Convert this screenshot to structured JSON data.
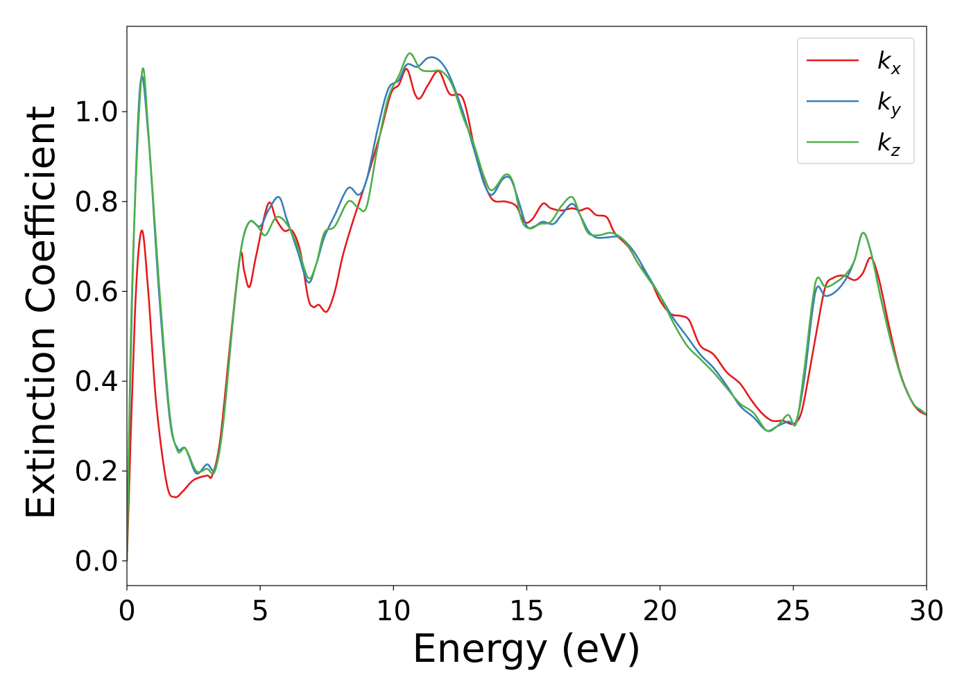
{
  "chart_data": {
    "type": "line",
    "xlabel": "Energy (eV)",
    "ylabel": "Extinction Coefficient",
    "xlim": [
      0,
      30
    ],
    "ylim": [
      -0.055,
      1.19
    ],
    "xticks": [
      0,
      5,
      10,
      15,
      20,
      25,
      30
    ],
    "xtick_labels": [
      "0",
      "5",
      "10",
      "15",
      "20",
      "25",
      "30"
    ],
    "yticks": [
      0.0,
      0.2,
      0.4,
      0.6,
      0.8,
      1.0
    ],
    "ytick_labels": [
      "0.0",
      "0.2",
      "0.4",
      "0.6",
      "0.8",
      "1.0"
    ],
    "grid": false,
    "legend_position": "top-right",
    "series": [
      {
        "name": "k_x",
        "label_main": "k",
        "label_sub": "x",
        "color": "#e41a1c",
        "points": [
          [
            0,
            0.0
          ],
          [
            0.3,
            0.55
          ],
          [
            0.55,
            0.735
          ],
          [
            0.8,
            0.6
          ],
          [
            1.1,
            0.35
          ],
          [
            1.5,
            0.17
          ],
          [
            1.8,
            0.142
          ],
          [
            2.1,
            0.155
          ],
          [
            2.5,
            0.18
          ],
          [
            3.0,
            0.19
          ],
          [
            3.2,
            0.19
          ],
          [
            3.5,
            0.27
          ],
          [
            3.9,
            0.5
          ],
          [
            4.25,
            0.68
          ],
          [
            4.4,
            0.645
          ],
          [
            4.6,
            0.61
          ],
          [
            4.85,
            0.68
          ],
          [
            5.3,
            0.795
          ],
          [
            5.6,
            0.76
          ],
          [
            5.9,
            0.735
          ],
          [
            6.2,
            0.735
          ],
          [
            6.5,
            0.69
          ],
          [
            6.8,
            0.585
          ],
          [
            7.0,
            0.565
          ],
          [
            7.2,
            0.57
          ],
          [
            7.5,
            0.555
          ],
          [
            7.8,
            0.6
          ],
          [
            8.1,
            0.68
          ],
          [
            8.5,
            0.76
          ],
          [
            9.0,
            0.85
          ],
          [
            9.5,
            0.95
          ],
          [
            9.9,
            1.04
          ],
          [
            10.2,
            1.06
          ],
          [
            10.5,
            1.095
          ],
          [
            10.8,
            1.04
          ],
          [
            11.0,
            1.03
          ],
          [
            11.3,
            1.06
          ],
          [
            11.7,
            1.09
          ],
          [
            12.1,
            1.04
          ],
          [
            12.6,
            1.03
          ],
          [
            13.0,
            0.93
          ],
          [
            13.3,
            0.86
          ],
          [
            13.7,
            0.805
          ],
          [
            14.2,
            0.8
          ],
          [
            14.6,
            0.79
          ],
          [
            14.9,
            0.755
          ],
          [
            15.2,
            0.76
          ],
          [
            15.6,
            0.795
          ],
          [
            15.9,
            0.785
          ],
          [
            16.3,
            0.78
          ],
          [
            16.7,
            0.785
          ],
          [
            17.0,
            0.78
          ],
          [
            17.3,
            0.785
          ],
          [
            17.6,
            0.77
          ],
          [
            18.0,
            0.765
          ],
          [
            18.3,
            0.73
          ],
          [
            18.8,
            0.7
          ],
          [
            19.2,
            0.66
          ],
          [
            19.6,
            0.63
          ],
          [
            20.0,
            0.58
          ],
          [
            20.4,
            0.55
          ],
          [
            20.8,
            0.545
          ],
          [
            21.1,
            0.535
          ],
          [
            21.5,
            0.48
          ],
          [
            22.0,
            0.46
          ],
          [
            22.5,
            0.42
          ],
          [
            23.0,
            0.395
          ],
          [
            23.4,
            0.36
          ],
          [
            23.8,
            0.33
          ],
          [
            24.2,
            0.312
          ],
          [
            24.6,
            0.312
          ],
          [
            25.0,
            0.305
          ],
          [
            25.3,
            0.33
          ],
          [
            25.6,
            0.42
          ],
          [
            25.9,
            0.52
          ],
          [
            26.2,
            0.61
          ],
          [
            26.5,
            0.63
          ],
          [
            26.9,
            0.635
          ],
          [
            27.3,
            0.625
          ],
          [
            27.6,
            0.64
          ],
          [
            27.9,
            0.675
          ],
          [
            28.2,
            0.63
          ],
          [
            28.6,
            0.52
          ],
          [
            29.0,
            0.42
          ],
          [
            29.4,
            0.36
          ],
          [
            29.7,
            0.335
          ],
          [
            30.0,
            0.325
          ]
        ]
      },
      {
        "name": "k_y",
        "label_main": "k",
        "label_sub": "y",
        "color": "#377eb8",
        "points": [
          [
            0,
            0.0
          ],
          [
            0.2,
            0.6
          ],
          [
            0.5,
            1.06
          ],
          [
            0.8,
            0.95
          ],
          [
            1.2,
            0.6
          ],
          [
            1.6,
            0.32
          ],
          [
            1.9,
            0.25
          ],
          [
            2.2,
            0.25
          ],
          [
            2.6,
            0.195
          ],
          [
            3.0,
            0.215
          ],
          [
            3.3,
            0.205
          ],
          [
            3.6,
            0.3
          ],
          [
            4.0,
            0.55
          ],
          [
            4.3,
            0.7
          ],
          [
            4.6,
            0.755
          ],
          [
            5.0,
            0.745
          ],
          [
            5.3,
            0.78
          ],
          [
            5.7,
            0.81
          ],
          [
            6.0,
            0.76
          ],
          [
            6.4,
            0.69
          ],
          [
            6.8,
            0.62
          ],
          [
            7.1,
            0.66
          ],
          [
            7.4,
            0.72
          ],
          [
            7.8,
            0.77
          ],
          [
            8.3,
            0.83
          ],
          [
            8.7,
            0.815
          ],
          [
            9.0,
            0.85
          ],
          [
            9.4,
            0.96
          ],
          [
            9.8,
            1.05
          ],
          [
            10.2,
            1.07
          ],
          [
            10.5,
            1.105
          ],
          [
            10.9,
            1.1
          ],
          [
            11.3,
            1.12
          ],
          [
            11.7,
            1.115
          ],
          [
            12.1,
            1.08
          ],
          [
            12.6,
            1.0
          ],
          [
            13.0,
            0.92
          ],
          [
            13.4,
            0.84
          ],
          [
            13.7,
            0.815
          ],
          [
            14.1,
            0.85
          ],
          [
            14.4,
            0.85
          ],
          [
            14.7,
            0.8
          ],
          [
            15.0,
            0.745
          ],
          [
            15.3,
            0.745
          ],
          [
            15.6,
            0.755
          ],
          [
            16.0,
            0.75
          ],
          [
            16.3,
            0.77
          ],
          [
            16.7,
            0.795
          ],
          [
            17.0,
            0.77
          ],
          [
            17.3,
            0.735
          ],
          [
            17.6,
            0.72
          ],
          [
            18.0,
            0.72
          ],
          [
            18.5,
            0.72
          ],
          [
            19.0,
            0.69
          ],
          [
            19.5,
            0.64
          ],
          [
            20.0,
            0.59
          ],
          [
            20.5,
            0.54
          ],
          [
            21.0,
            0.5
          ],
          [
            21.5,
            0.46
          ],
          [
            22.0,
            0.43
          ],
          [
            22.5,
            0.39
          ],
          [
            23.0,
            0.345
          ],
          [
            23.5,
            0.32
          ],
          [
            24.0,
            0.29
          ],
          [
            24.4,
            0.3
          ],
          [
            24.8,
            0.31
          ],
          [
            25.1,
            0.31
          ],
          [
            25.4,
            0.4
          ],
          [
            25.7,
            0.55
          ],
          [
            25.9,
            0.61
          ],
          [
            26.2,
            0.59
          ],
          [
            26.6,
            0.6
          ],
          [
            27.0,
            0.63
          ],
          [
            27.3,
            0.67
          ],
          [
            27.6,
            0.73
          ],
          [
            27.9,
            0.69
          ],
          [
            28.3,
            0.58
          ],
          [
            28.7,
            0.48
          ],
          [
            29.1,
            0.4
          ],
          [
            29.5,
            0.35
          ],
          [
            29.8,
            0.335
          ],
          [
            30.0,
            0.325
          ]
        ]
      },
      {
        "name": "k_z",
        "label_main": "k",
        "label_sub": "z",
        "color": "#4daf4a",
        "points": [
          [
            0,
            0.0
          ],
          [
            0.2,
            0.62
          ],
          [
            0.55,
            1.08
          ],
          [
            0.8,
            0.96
          ],
          [
            1.2,
            0.62
          ],
          [
            1.6,
            0.33
          ],
          [
            1.9,
            0.245
          ],
          [
            2.2,
            0.25
          ],
          [
            2.6,
            0.2
          ],
          [
            3.0,
            0.205
          ],
          [
            3.3,
            0.2
          ],
          [
            3.6,
            0.3
          ],
          [
            4.0,
            0.55
          ],
          [
            4.3,
            0.7
          ],
          [
            4.6,
            0.755
          ],
          [
            4.9,
            0.745
          ],
          [
            5.2,
            0.725
          ],
          [
            5.6,
            0.765
          ],
          [
            6.0,
            0.75
          ],
          [
            6.4,
            0.7
          ],
          [
            6.8,
            0.63
          ],
          [
            7.1,
            0.66
          ],
          [
            7.4,
            0.73
          ],
          [
            7.8,
            0.745
          ],
          [
            8.3,
            0.8
          ],
          [
            8.7,
            0.785
          ],
          [
            9.0,
            0.79
          ],
          [
            9.4,
            0.92
          ],
          [
            9.8,
            1.03
          ],
          [
            10.2,
            1.08
          ],
          [
            10.6,
            1.13
          ],
          [
            11.0,
            1.095
          ],
          [
            11.4,
            1.09
          ],
          [
            11.8,
            1.09
          ],
          [
            12.2,
            1.06
          ],
          [
            12.6,
            0.99
          ],
          [
            13.0,
            0.93
          ],
          [
            13.4,
            0.855
          ],
          [
            13.7,
            0.825
          ],
          [
            14.2,
            0.86
          ],
          [
            14.5,
            0.84
          ],
          [
            14.8,
            0.76
          ],
          [
            15.1,
            0.74
          ],
          [
            15.5,
            0.75
          ],
          [
            15.9,
            0.755
          ],
          [
            16.3,
            0.79
          ],
          [
            16.7,
            0.81
          ],
          [
            17.0,
            0.77
          ],
          [
            17.3,
            0.73
          ],
          [
            17.7,
            0.725
          ],
          [
            18.2,
            0.73
          ],
          [
            18.7,
            0.71
          ],
          [
            19.2,
            0.66
          ],
          [
            19.6,
            0.625
          ],
          [
            20.0,
            0.59
          ],
          [
            20.5,
            0.53
          ],
          [
            21.0,
            0.48
          ],
          [
            21.5,
            0.45
          ],
          [
            22.0,
            0.42
          ],
          [
            22.5,
            0.385
          ],
          [
            23.0,
            0.35
          ],
          [
            23.5,
            0.33
          ],
          [
            24.0,
            0.29
          ],
          [
            24.4,
            0.3
          ],
          [
            24.8,
            0.325
          ],
          [
            25.1,
            0.305
          ],
          [
            25.4,
            0.42
          ],
          [
            25.7,
            0.57
          ],
          [
            25.9,
            0.63
          ],
          [
            26.2,
            0.61
          ],
          [
            26.6,
            0.62
          ],
          [
            27.0,
            0.64
          ],
          [
            27.3,
            0.67
          ],
          [
            27.6,
            0.73
          ],
          [
            27.9,
            0.69
          ],
          [
            28.3,
            0.58
          ],
          [
            28.7,
            0.48
          ],
          [
            29.1,
            0.4
          ],
          [
            29.5,
            0.35
          ],
          [
            29.8,
            0.335
          ],
          [
            30.0,
            0.325
          ]
        ]
      }
    ]
  }
}
